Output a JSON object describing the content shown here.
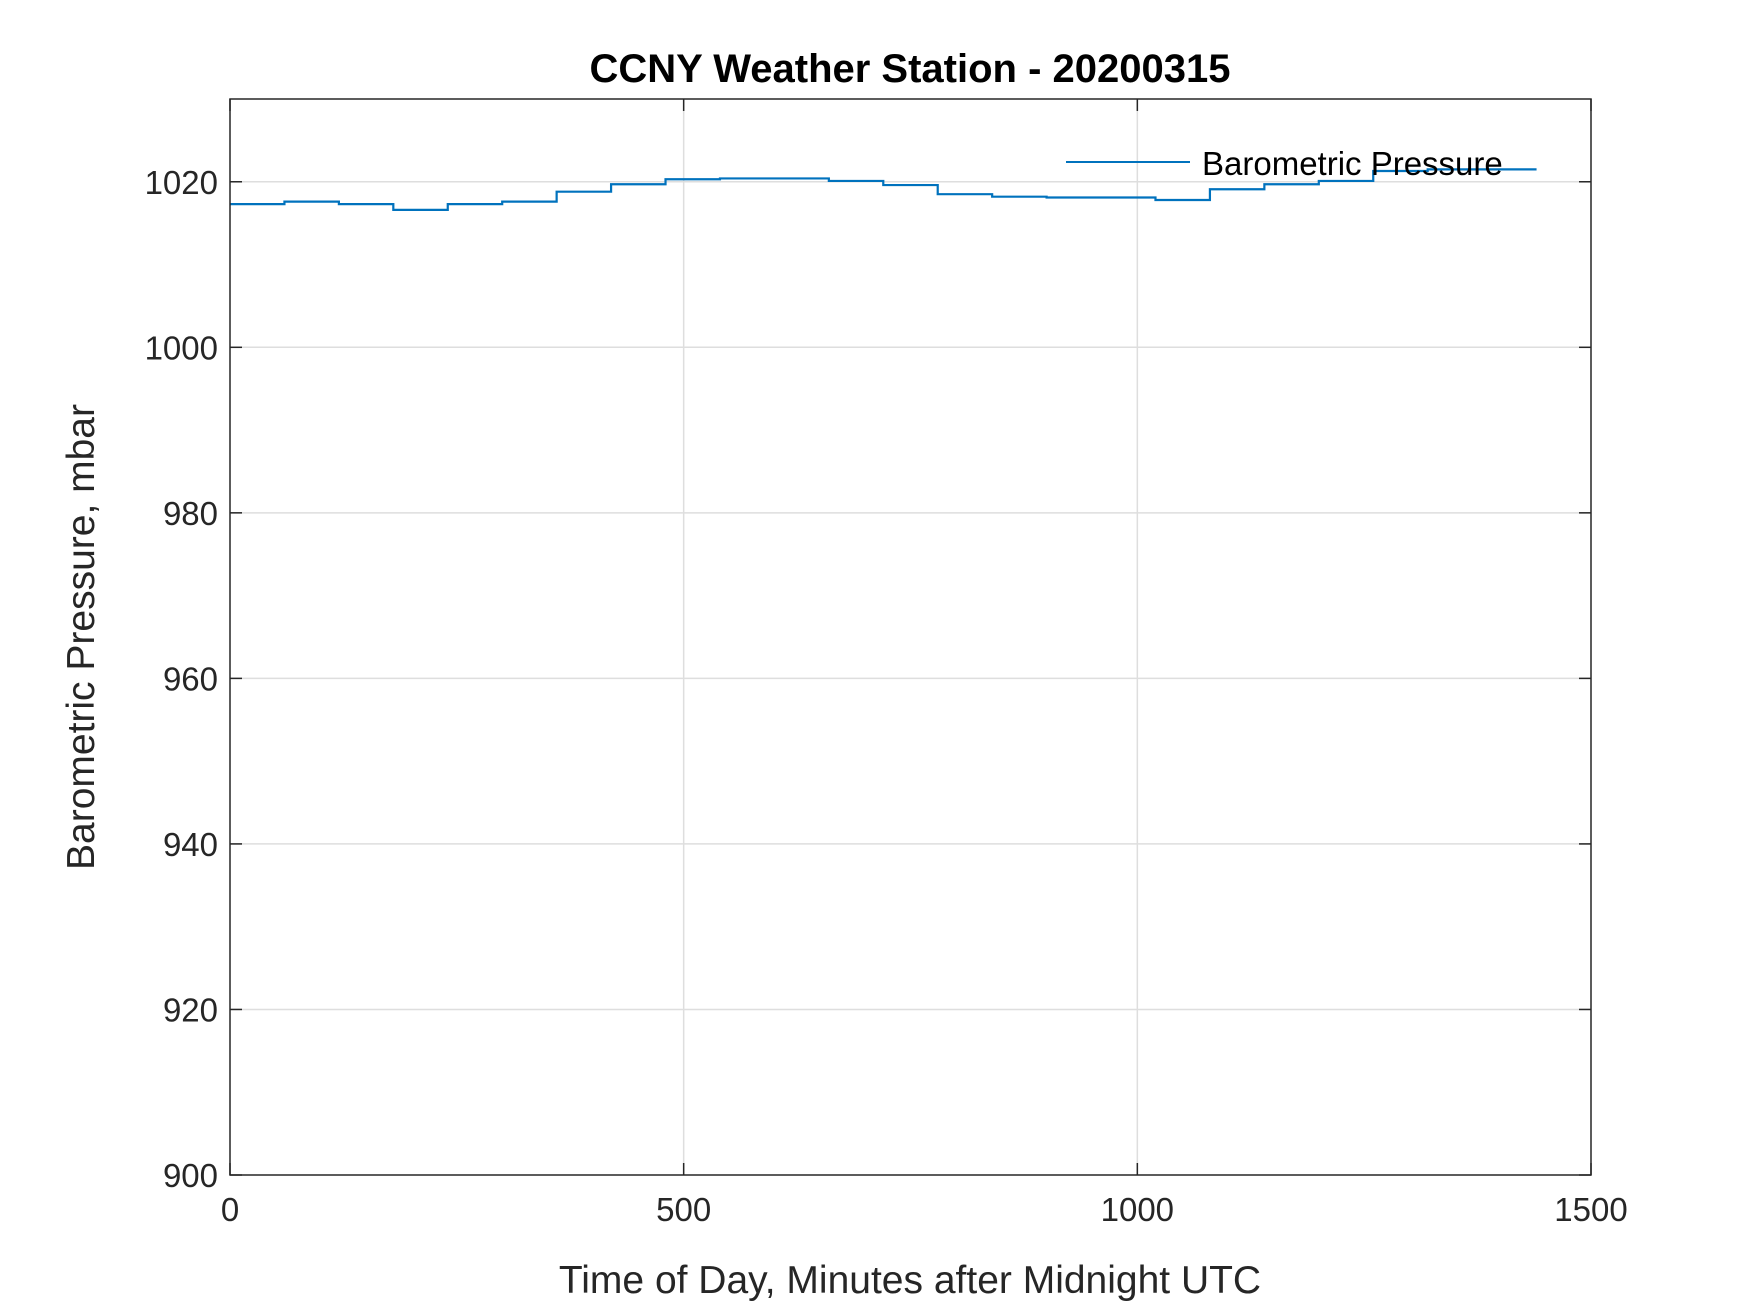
{
  "chart_data": {
    "type": "line",
    "title": "CCNY Weather Station - 20200315",
    "xlabel": "Time of Day, Minutes after Midnight UTC",
    "ylabel": "Barometric Pressure, mbar",
    "xlim": [
      0,
      1500
    ],
    "ylim": [
      900,
      1030
    ],
    "xticks": [
      0,
      500,
      1000,
      1500
    ],
    "yticks": [
      900,
      920,
      940,
      960,
      980,
      1000,
      1020
    ],
    "grid": true,
    "legend_position": "top-right",
    "line_style": "step",
    "series": [
      {
        "name": "Barometric Pressure",
        "color": "#0072BD",
        "x": [
          0,
          60,
          120,
          180,
          240,
          300,
          360,
          420,
          480,
          540,
          660,
          720,
          780,
          840,
          900,
          1020,
          1080,
          1140,
          1200,
          1260,
          1320,
          1440
        ],
        "y": [
          1017.3,
          1017.6,
          1017.3,
          1016.6,
          1017.3,
          1017.6,
          1018.8,
          1019.7,
          1020.3,
          1020.4,
          1020.1,
          1019.6,
          1018.5,
          1018.2,
          1018.1,
          1017.8,
          1019.1,
          1019.7,
          1020.1,
          1021.3,
          1021.5,
          1021.5
        ]
      }
    ]
  }
}
